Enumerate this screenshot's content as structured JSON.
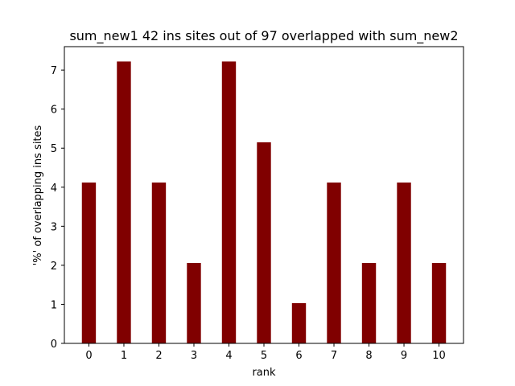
{
  "chart_data": {
    "type": "bar",
    "title": "sum_new1 42 ins sites out of 97 overlapped with sum_new2",
    "xlabel": "rank",
    "ylabel": "'%' of overlapping ins sites",
    "categories": [
      "0",
      "1",
      "2",
      "3",
      "4",
      "5",
      "6",
      "7",
      "8",
      "9",
      "10"
    ],
    "values": [
      4.12,
      7.22,
      4.12,
      2.06,
      7.22,
      5.15,
      1.03,
      4.12,
      2.06,
      4.12,
      2.06
    ],
    "xlim": [
      -0.7,
      10.7
    ],
    "ylim": [
      0,
      7.6
    ],
    "yticks": [
      0,
      1,
      2,
      3,
      4,
      5,
      6,
      7
    ],
    "bar_color": "#800000",
    "grid": false
  }
}
